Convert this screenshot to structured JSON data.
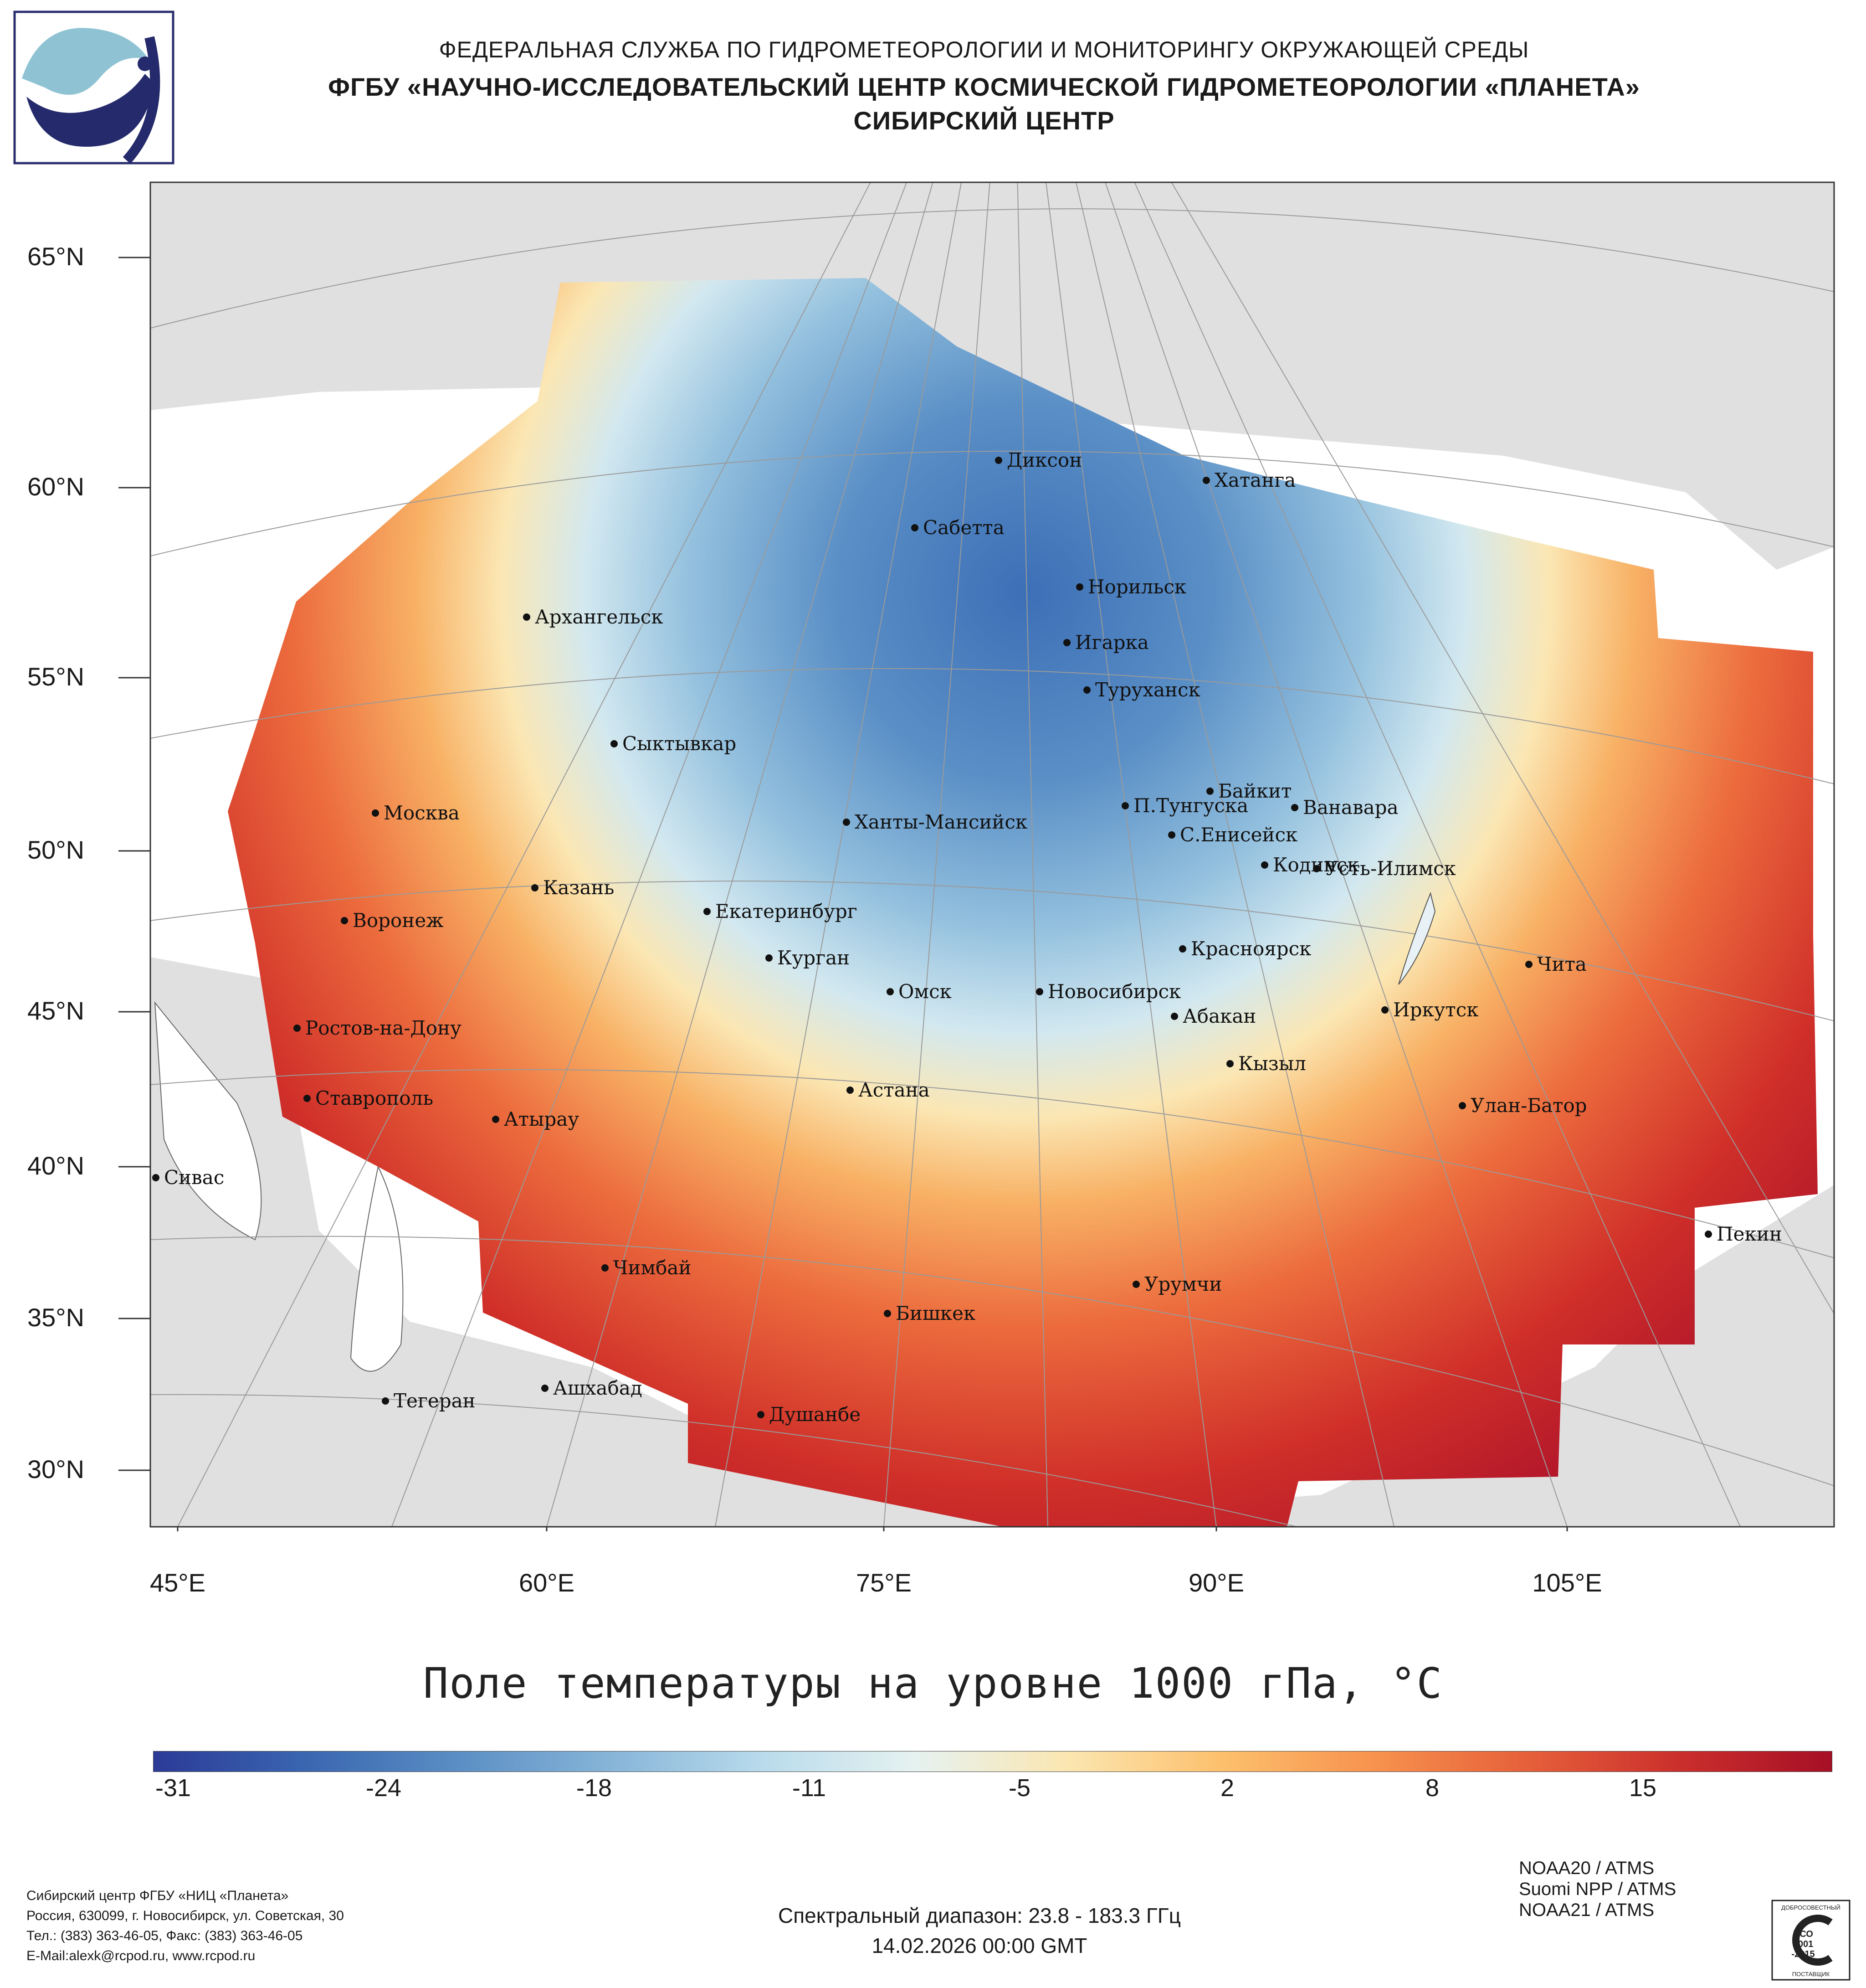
{
  "header": {
    "line1": "ФЕДЕРАЛЬНАЯ СЛУЖБА ПО ГИДРОМЕТЕОРОЛОГИИ И МОНИТОРИНГУ ОКРУЖАЮЩЕЙ СРЕДЫ",
    "line2": "ФГБУ «НАУЧНО-ИССЛЕДОВАТЕЛЬСКИЙ ЦЕНТР КОСМИЧЕСКОЙ ГИДРОМЕТЕОРОЛОГИИ «ПЛАНЕТА»",
    "line3": "СИБИРСКИЙ ЦЕНТР"
  },
  "axes": {
    "lat_labels": [
      "65°N",
      "60°N",
      "55°N",
      "50°N",
      "45°N",
      "40°N",
      "35°N",
      "30°N"
    ],
    "lon_labels": [
      "45°E",
      "60°E",
      "75°E",
      "90°E",
      "105°E"
    ]
  },
  "cities": [
    {
      "name": "Диксон"
    },
    {
      "name": "Хатанга"
    },
    {
      "name": "Сабетта"
    },
    {
      "name": "Норильск"
    },
    {
      "name": "Архангельск"
    },
    {
      "name": "Игарка"
    },
    {
      "name": "Туруханск"
    },
    {
      "name": "Сыктывкар"
    },
    {
      "name": "Байкит"
    },
    {
      "name": "Москва"
    },
    {
      "name": "Ханты-Мансийск"
    },
    {
      "name": "П.Тунгуска"
    },
    {
      "name": "Ванавара"
    },
    {
      "name": "С.Енисейск"
    },
    {
      "name": "Казань"
    },
    {
      "name": "Кодинск"
    },
    {
      "name": "Усть-Илимск"
    },
    {
      "name": "Екатеринбург"
    },
    {
      "name": "Воронеж"
    },
    {
      "name": "Красноярск"
    },
    {
      "name": "Курган"
    },
    {
      "name": "Чита"
    },
    {
      "name": "Омск"
    },
    {
      "name": "Новосибирск"
    },
    {
      "name": "Ростов-на-Дону"
    },
    {
      "name": "Абакан"
    },
    {
      "name": "Иркутск"
    },
    {
      "name": "Кызыл"
    },
    {
      "name": "Астана"
    },
    {
      "name": "Ставрополь"
    },
    {
      "name": "Улан-Батор"
    },
    {
      "name": "Атырау"
    },
    {
      "name": "Сивас"
    },
    {
      "name": "Пекин"
    },
    {
      "name": "Чимбай"
    },
    {
      "name": "Урумчи"
    },
    {
      "name": "Бишкек"
    },
    {
      "name": "Ашхабад"
    },
    {
      "name": "Тегеран"
    },
    {
      "name": "Душанбе"
    }
  ],
  "map_title": "Поле температуры на уровне 1000 гПа, °C",
  "colorbar": {
    "ticks": [
      "-31",
      "-24",
      "-18",
      "-11",
      "-5",
      "2",
      "8",
      "15"
    ],
    "colors": [
      "#2b3a97",
      "#3a66b0",
      "#5b8ec4",
      "#87b5d8",
      "#b9dbec",
      "#e6f2f0",
      "#fbe6b0",
      "#fcc06d",
      "#f7924e",
      "#e6603a",
      "#cb2f2c",
      "#a60f26"
    ]
  },
  "footer": {
    "left_line1": "Сибирский центр ФГБУ «НИЦ «Планета»",
    "left_line2": "Россия, 630099, г. Новосибирск, ул. Советская, 30",
    "left_line3": "Тел.: (383) 363-46-05, Факс: (383) 363-46-05",
    "left_line4": "E-Mail:alexk@rcpod.ru, www.rcpod.ru",
    "spectral": "Спектральный диапазон: 23.8 - 183.3 ГГц",
    "datetime": "14.02.2026 00:00 GMT",
    "sat1": "NOAA20 / ATMS",
    "sat2": "Suomi NPP / ATMS",
    "sat3": "NOAA21 / ATMS"
  },
  "iso_badge": {
    "top": "ДОБРОСОВЕСТНЫЙ",
    "mid1": "ИСО",
    "mid2": "9001",
    "mid3": "-2015",
    "bottom": "ПОСТАВЩИК"
  }
}
